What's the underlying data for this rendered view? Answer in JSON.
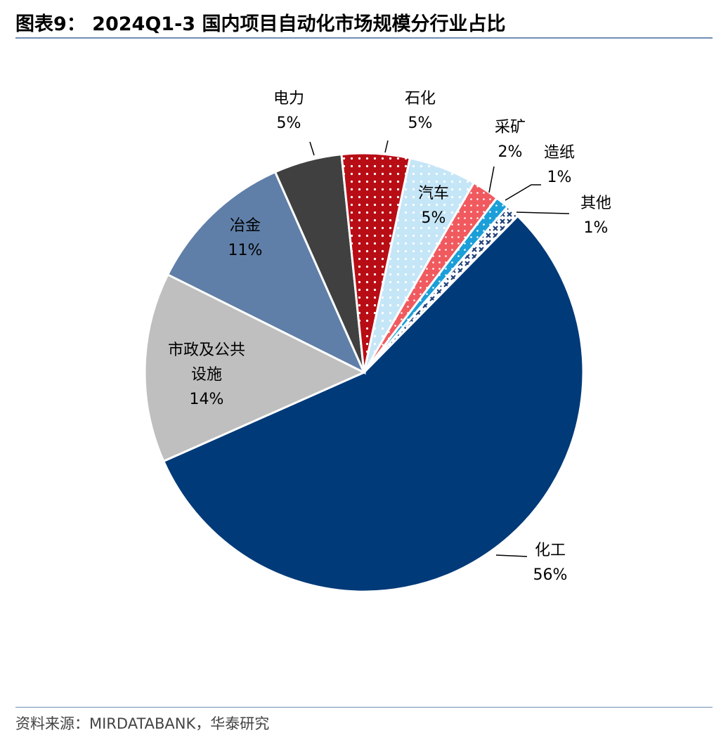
{
  "header": {
    "title": "图表9： 2024Q1-3 国内项目自动化市场规模分行业占比"
  },
  "footer": {
    "source": "资料来源：MIRDATABANK，华泰研究"
  },
  "chart_data": {
    "type": "pie",
    "title": "图表9： 2024Q1-3 国内项目自动化市场规模分行业占比",
    "unit": "%",
    "slices": [
      {
        "name": "化工",
        "label": "56%",
        "value": 56,
        "color": "#003a78",
        "pattern": "solid"
      },
      {
        "name": "市政及公共设施",
        "label": "14%",
        "value": 14,
        "color": "#bfbfbf",
        "pattern": "solid"
      },
      {
        "name": "冶金",
        "label": "11%",
        "value": 11,
        "color": "#5f7fa8",
        "pattern": "solid"
      },
      {
        "name": "电力",
        "label": "5%",
        "value": 5,
        "color": "#404040",
        "pattern": "solid"
      },
      {
        "name": "石化",
        "label": "5%",
        "value": 5,
        "color": "#b80d15",
        "pattern": "white-dots"
      },
      {
        "name": "汽车",
        "label": "5%",
        "value": 5,
        "color": "#c5e6f7",
        "pattern": "white-dots"
      },
      {
        "name": "采矿",
        "label": "2%",
        "value": 2,
        "color": "#f05a5f",
        "pattern": "white-dots"
      },
      {
        "name": "造纸",
        "label": "1%",
        "value": 1,
        "color": "#1b9fd8",
        "pattern": "white-dots"
      },
      {
        "name": "其他",
        "label": "1%",
        "value": 1,
        "color": "#1f3f78",
        "pattern": "crosses"
      }
    ],
    "legend": "none",
    "data_labels": "category-name-and-percent"
  }
}
